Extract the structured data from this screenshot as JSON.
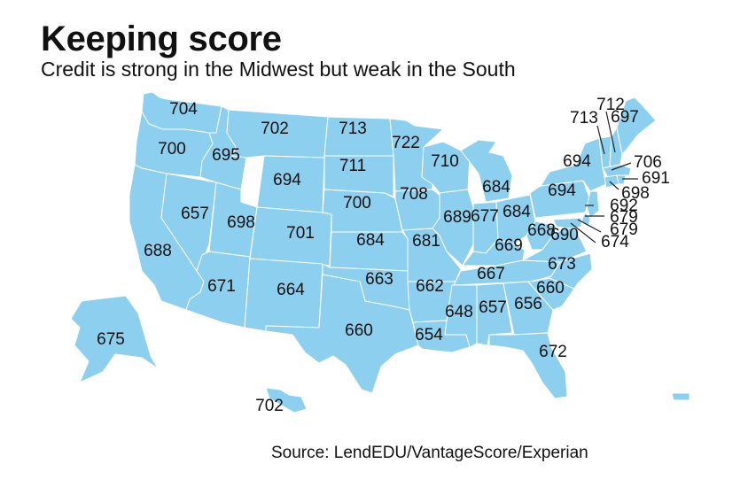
{
  "title": "Keeping score",
  "subtitle": "Credit is strong in the Midwest but weak in the South",
  "source": "Source: LendEDU/VantageScore/Experian",
  "colors": {
    "land": "#8ccfee",
    "border": "#ffffff",
    "text": "#111111"
  },
  "scores": [
    {
      "state": "Washington",
      "value": "704"
    },
    {
      "state": "Oregon",
      "value": "700"
    },
    {
      "state": "California",
      "value": "688"
    },
    {
      "state": "Nevada",
      "value": "657"
    },
    {
      "state": "Idaho",
      "value": "695"
    },
    {
      "state": "Montana",
      "value": "702"
    },
    {
      "state": "Wyoming",
      "value": "694"
    },
    {
      "state": "Utah",
      "value": "698"
    },
    {
      "state": "Arizona",
      "value": "671"
    },
    {
      "state": "Colorado",
      "value": "701"
    },
    {
      "state": "New Mexico",
      "value": "664"
    },
    {
      "state": "North Dakota",
      "value": "713"
    },
    {
      "state": "South Dakota",
      "value": "711"
    },
    {
      "state": "Nebraska",
      "value": "700"
    },
    {
      "state": "Kansas",
      "value": "684"
    },
    {
      "state": "Oklahoma",
      "value": "663"
    },
    {
      "state": "Texas",
      "value": "660"
    },
    {
      "state": "Minnesota",
      "value": "722"
    },
    {
      "state": "Iowa",
      "value": "708"
    },
    {
      "state": "Missouri",
      "value": "681"
    },
    {
      "state": "Arkansas",
      "value": "662"
    },
    {
      "state": "Louisiana",
      "value": "654"
    },
    {
      "state": "Wisconsin",
      "value": "710"
    },
    {
      "state": "Illinois",
      "value": "689"
    },
    {
      "state": "Michigan",
      "value": "684"
    },
    {
      "state": "Indiana",
      "value": "677"
    },
    {
      "state": "Ohio",
      "value": "684"
    },
    {
      "state": "Kentucky",
      "value": "669"
    },
    {
      "state": "Tennessee",
      "value": "667"
    },
    {
      "state": "Mississippi",
      "value": "648"
    },
    {
      "state": "Alabama",
      "value": "657"
    },
    {
      "state": "Georgia",
      "value": "656"
    },
    {
      "state": "Florida",
      "value": "672"
    },
    {
      "state": "South Carolina",
      "value": "660"
    },
    {
      "state": "North Carolina",
      "value": "673"
    },
    {
      "state": "Virginia",
      "value": "690"
    },
    {
      "state": "West Virginia",
      "value": "668"
    },
    {
      "state": "Pennsylvania",
      "value": "694"
    },
    {
      "state": "New York",
      "value": "694"
    },
    {
      "state": "Vermont",
      "value": "713"
    },
    {
      "state": "New Hampshire",
      "value": "712"
    },
    {
      "state": "Maine",
      "value": "697"
    },
    {
      "state": "Massachusetts",
      "value": "706"
    },
    {
      "state": "Rhode Island",
      "value": "691"
    },
    {
      "state": "Connecticut",
      "value": "698"
    },
    {
      "state": "New Jersey",
      "value": "692"
    },
    {
      "state": "Delaware",
      "value": "679"
    },
    {
      "state": "Maryland",
      "value": "679"
    },
    {
      "state": "District of Columbia",
      "value": "674"
    },
    {
      "state": "Alaska",
      "value": "675"
    },
    {
      "state": "Hawaii",
      "value": "702"
    }
  ]
}
